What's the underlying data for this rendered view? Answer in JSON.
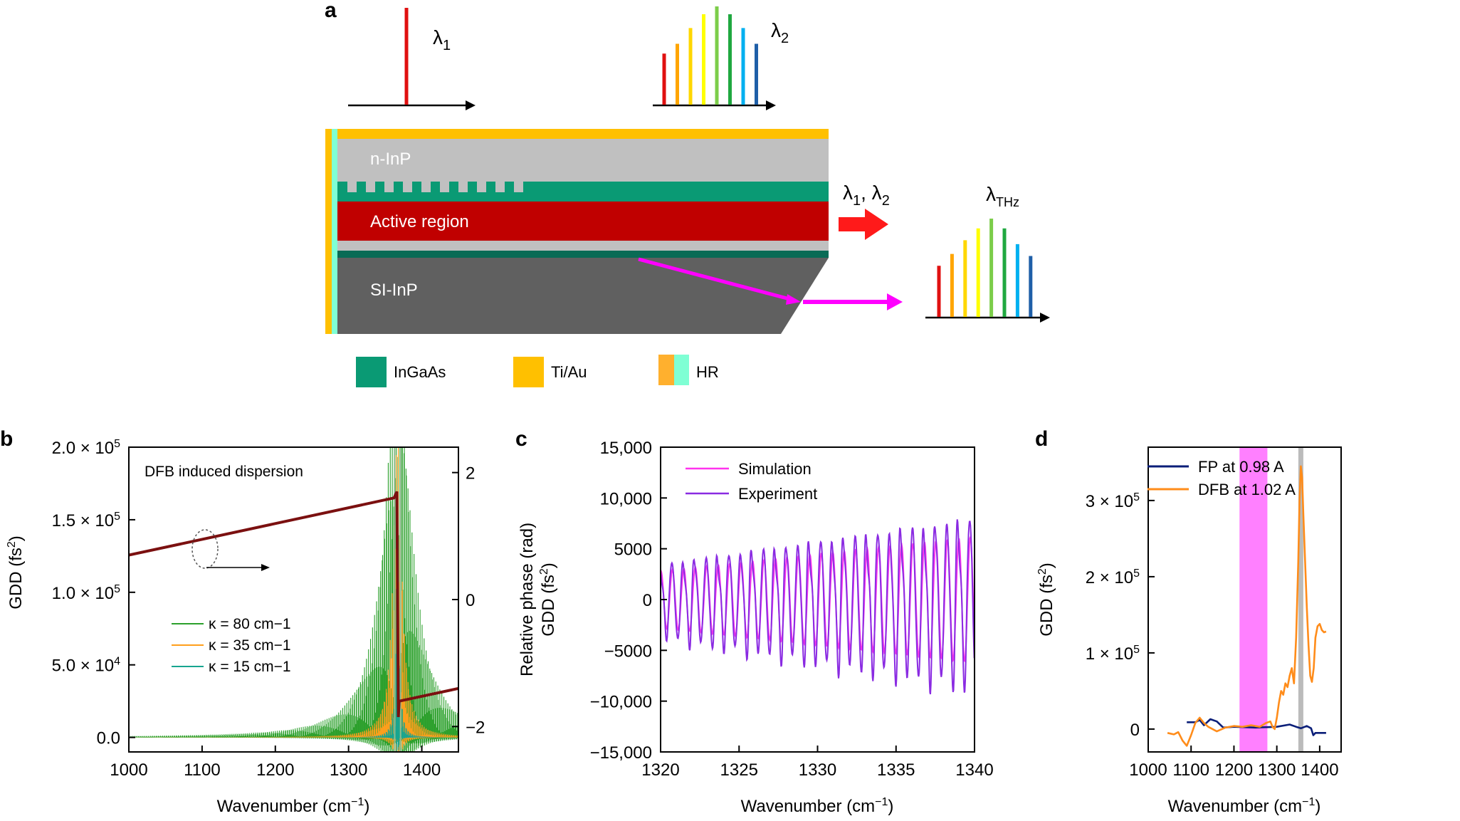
{
  "panel_a": {
    "label": "a",
    "lambda1": "λ1",
    "lambda2": "λ2",
    "lambda12": "λ1, λ2",
    "lambdaTHz": "λTHz",
    "layers": {
      "n_inp": "n-InP",
      "active": "Active region",
      "si_inp": "SI-InP"
    },
    "legend": [
      {
        "label": "InGaAs",
        "color": "#0a9a74"
      },
      {
        "label": "Ti/Au",
        "color": "#ffc000"
      },
      {
        "label": "HR",
        "color": "#ffb02e",
        "color2": "#7fffd4"
      }
    ],
    "colors": {
      "n_inp": "#c0c0c0",
      "ingaas": "#0a9a74",
      "active": "#c00000",
      "spacer": "#c0c0c0",
      "thin_ingaas": "#096b55",
      "si_inp": "#606060",
      "tiau": "#ffc000",
      "hr_left": "#ffc000",
      "hr_right": "#7fffd4",
      "arrow_red": "#ff1a1a",
      "arrow_magenta": "#ff00ff"
    },
    "comb_colors": [
      "#e01010",
      "#ffa500",
      "#ffd700",
      "#ffff00",
      "#7ccd4a",
      "#20a840",
      "#00b0f0",
      "#1f5fa8"
    ]
  },
  "chart_data": [
    {
      "panel": "b",
      "type": "line",
      "annotation": "DFB induced dispersion",
      "xlabel": "Wavenumber (cm−1)",
      "ylabel": "GDD (fs2)",
      "y2label": "",
      "xlim": [
        1000,
        1450
      ],
      "ylim": [
        -10000,
        200000
      ],
      "y2lim": [
        -2.4,
        2.4
      ],
      "xticks": [
        1000,
        1100,
        1200,
        1300,
        1400
      ],
      "yticks": [
        {
          "v": 0,
          "label": "0.0"
        },
        {
          "v": 50000,
          "label": "5.0 × 10",
          "exp": "4"
        },
        {
          "v": 100000,
          "label": "1.0 × 10",
          "exp": "5"
        },
        {
          "v": 150000,
          "label": "1.5 × 10",
          "exp": "5"
        },
        {
          "v": 200000,
          "label": "2.0 × 10",
          "exp": "5"
        }
      ],
      "y2ticks": [
        {
          "v": 2,
          "label": "2"
        },
        {
          "v": 0,
          "label": "0"
        },
        {
          "v": -2,
          "label": "−2"
        }
      ],
      "center": 1367,
      "series": [
        {
          "name": "κ = 80 cm−1",
          "color": "#2ca02c",
          "kappa": 80
        },
        {
          "name": "κ = 35 cm−1",
          "color": "#ff9f1c",
          "kappa": 35
        },
        {
          "name": "κ = 15 cm−1",
          "color": "#17a590",
          "kappa": 15
        }
      ],
      "phase_series": {
        "name": "phase (rad)",
        "color": "#7b1010",
        "x": [
          1000,
          1362,
          1366,
          1368,
          1369,
          1450
        ],
        "y": [
          0.7,
          1.6,
          1.7,
          -1.85,
          -1.6,
          -1.4
        ]
      }
    },
    {
      "panel": "c",
      "type": "line",
      "xlabel": "Wavenumber (cm−1)",
      "ylabel_top": "Relative phase (rad)",
      "ylabel": "GDD (fs2)",
      "xlim": [
        1320,
        1340
      ],
      "ylim": [
        -15000,
        15000
      ],
      "xticks": [
        1320,
        1325,
        1330,
        1335,
        1340
      ],
      "yticks": [
        {
          "v": 15000,
          "label": "15,000"
        },
        {
          "v": 10000,
          "label": "10,000"
        },
        {
          "v": 5000,
          "label": "5000"
        },
        {
          "v": 0,
          "label": "0"
        },
        {
          "v": -5000,
          "label": "−5000"
        },
        {
          "v": -10000,
          "label": "−10,000"
        },
        {
          "v": -15000,
          "label": "−15,000"
        }
      ],
      "oscillation_period_cm": 0.73,
      "series": [
        {
          "name": "Simulation",
          "color": "#ff33ee",
          "amp_start": 2800,
          "amp_end": 6200
        },
        {
          "name": "Experiment",
          "color": "#8a2be2",
          "amp_start": 3500,
          "amp_end": 8000
        }
      ]
    },
    {
      "panel": "d",
      "type": "line",
      "xlabel": "Wavenumber (cm−1)",
      "ylabel": "GDD (fs2)",
      "xlim": [
        1000,
        1450
      ],
      "ylim": [
        -30000,
        370000
      ],
      "xticks": [
        1000,
        1100,
        1200,
        1300,
        1400
      ],
      "yticks": [
        {
          "v": 0,
          "label": "0"
        },
        {
          "v": 100000,
          "label": "1 × 10",
          "exp": "5"
        },
        {
          "v": 200000,
          "label": "2 × 10",
          "exp": "5"
        },
        {
          "v": 300000,
          "label": "3 × 10",
          "exp": "5"
        }
      ],
      "highlight_band": {
        "x": [
          1213,
          1278
        ],
        "color": "#ff80ff"
      },
      "marker_line": {
        "x": 1356,
        "color": "#bbbbbb"
      },
      "series": [
        {
          "name": "FP at 0.98 A",
          "color": "#0a1e78",
          "x": [
            1090,
            1110,
            1120,
            1130,
            1145,
            1160,
            1175,
            1200,
            1250,
            1300,
            1330,
            1345,
            1356,
            1370,
            1380,
            1385,
            1390,
            1415
          ],
          "y": [
            9000,
            9000,
            12000,
            5000,
            13000,
            10000,
            2000,
            3000,
            2000,
            3000,
            6000,
            3000,
            1000,
            4000,
            1000,
            -8000,
            -5000,
            -5000
          ]
        },
        {
          "name": "DFB at 1.02 A",
          "color": "#ff8c1a",
          "x": [
            1045,
            1060,
            1070,
            1080,
            1090,
            1100,
            1110,
            1120,
            1130,
            1140,
            1160,
            1180,
            1200,
            1220,
            1240,
            1260,
            1275,
            1285,
            1290,
            1295,
            1300,
            1305,
            1310,
            1315,
            1320,
            1325,
            1330,
            1335,
            1340,
            1345,
            1350,
            1353,
            1356,
            1359,
            1362,
            1366,
            1370,
            1374,
            1378,
            1382,
            1386,
            1390,
            1395,
            1400,
            1405,
            1410,
            1415
          ],
          "y": [
            -5000,
            -7000,
            -4000,
            -15000,
            -22000,
            -8000,
            8000,
            15000,
            8000,
            3000,
            -3000,
            2000,
            4000,
            3000,
            5000,
            3000,
            8000,
            10000,
            3000,
            0,
            15000,
            35000,
            50000,
            45000,
            60000,
            55000,
            70000,
            80000,
            60000,
            120000,
            220000,
            300000,
            345000,
            330000,
            280000,
            220000,
            160000,
            110000,
            70000,
            62000,
            80000,
            120000,
            135000,
            138000,
            130000,
            127000,
            128000
          ]
        }
      ]
    }
  ]
}
